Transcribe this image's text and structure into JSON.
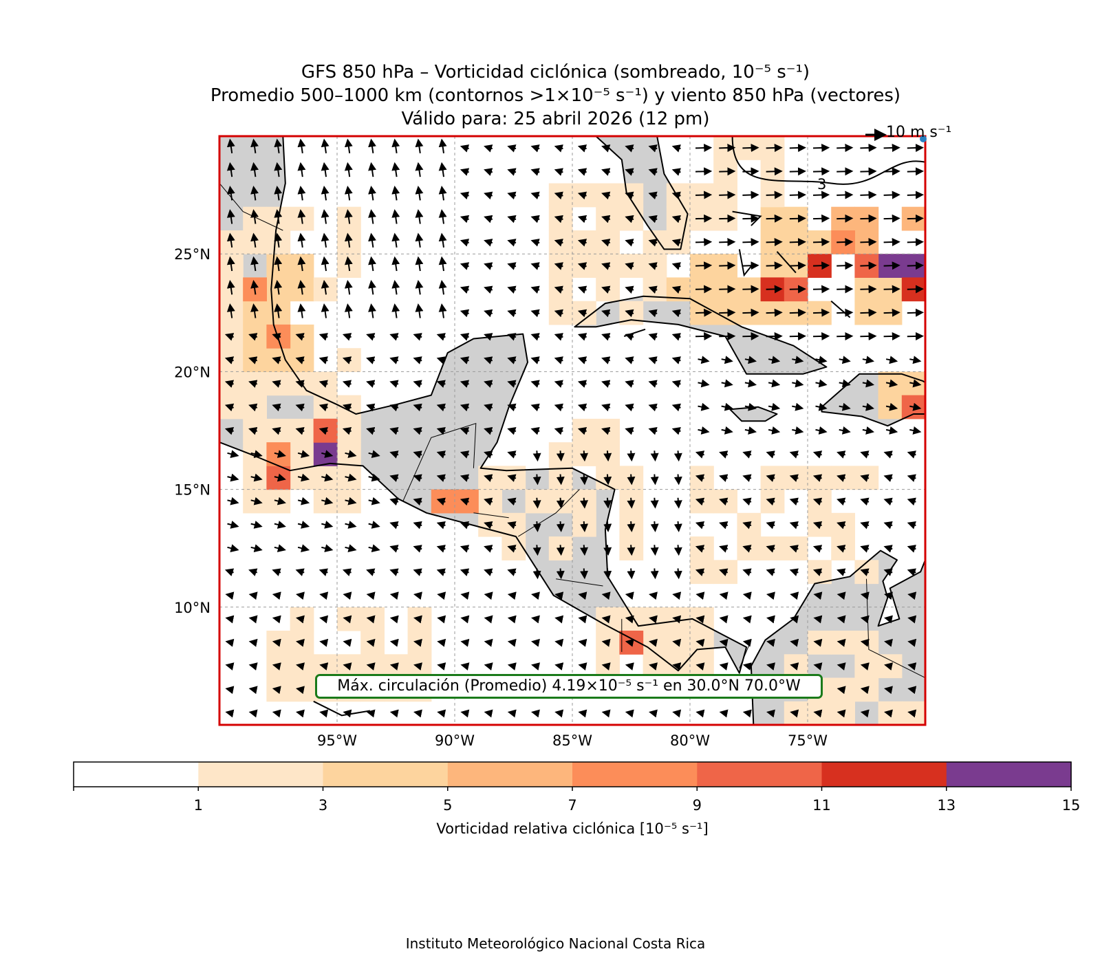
{
  "title": {
    "line1": "GFS 850 hPa – Vorticidad ciclónica (sombreado, 10⁻⁵ s⁻¹)",
    "line2": "Promedio 500–1000 km (contornos >1×10⁻⁵ s⁻¹) y viento 850 hPa (vectores)",
    "line3": "Válido para: 25 abril 2026 (12 pm)"
  },
  "reference_vector": {
    "label": "10 m s⁻¹"
  },
  "axes": {
    "lon_labels": [
      "95°W",
      "90°W",
      "85°W",
      "80°W",
      "75°W"
    ],
    "lat_labels": [
      "25°N",
      "20°N",
      "15°N",
      "10°N"
    ]
  },
  "contour_label": "3",
  "max_circulation": {
    "text": "Máx. circulación (Promedio) 4.19×10⁻⁵ s⁻¹ en 30.0°N 70.0°W"
  },
  "colorbar": {
    "label": "Vorticidad relativa ciclónica [10⁻⁵ s⁻¹]",
    "ticks": [
      "1",
      "3",
      "5",
      "7",
      "9",
      "11",
      "13",
      "15"
    ],
    "colors": [
      "#ffffff",
      "#fee6c8",
      "#fdd49e",
      "#fdb67c",
      "#fc8d59",
      "#ef6548",
      "#d7301f",
      "#7a3b8f"
    ]
  },
  "footer": "Instituto Meteorológico Nacional Costa Rica"
}
